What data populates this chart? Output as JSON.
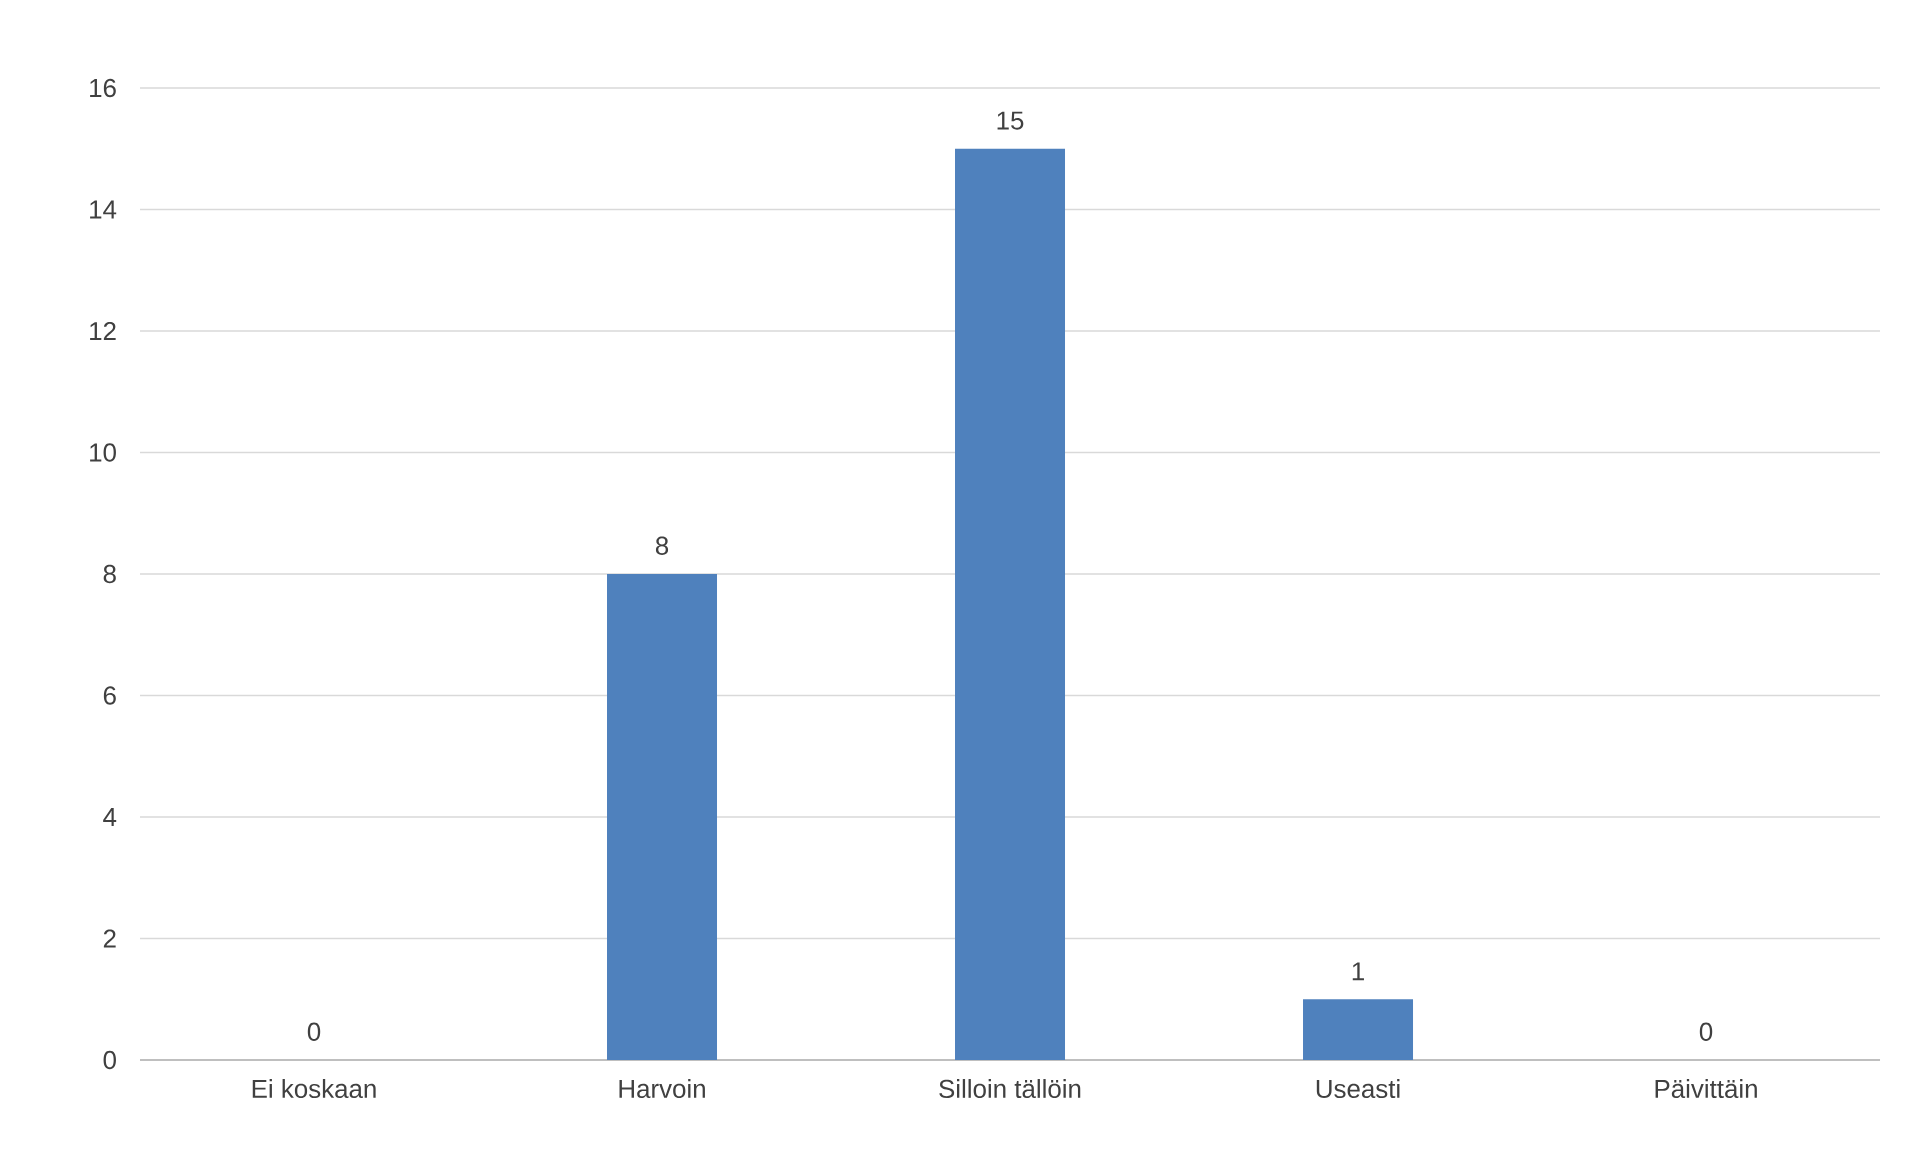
{
  "chart_data": {
    "type": "bar",
    "categories": [
      "Ei koskaan",
      "Harvoin",
      "Silloin tällöin",
      "Useasti",
      "Päivittäin"
    ],
    "values": [
      0,
      8,
      15,
      1,
      0
    ],
    "color": "#4f81bd",
    "ylim": [
      0,
      16
    ],
    "yticks": [
      0,
      2,
      4,
      6,
      8,
      10,
      12,
      14,
      16
    ],
    "grid": "y",
    "data_labels": true
  }
}
